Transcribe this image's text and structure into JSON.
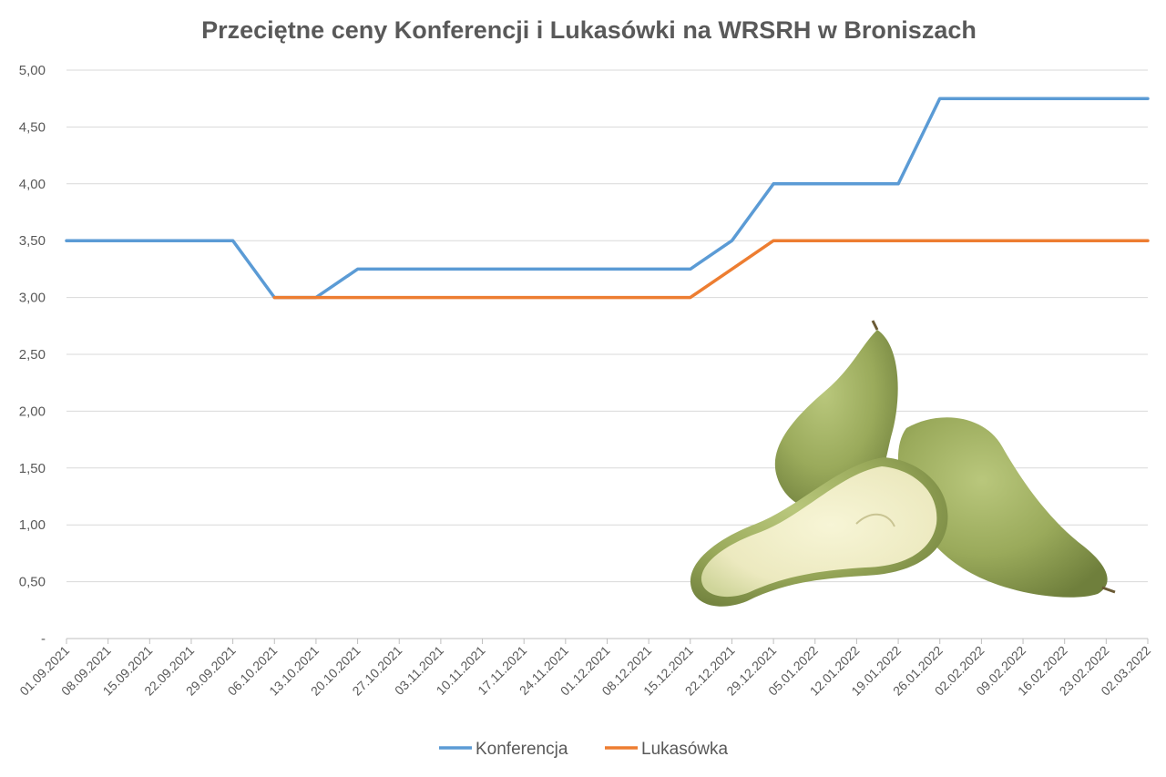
{
  "chart_data": {
    "type": "line",
    "title": "Przeciętne ceny Konferencji i Lukasówki na WRSRH w Broniszach",
    "xlabel": "",
    "ylabel": "",
    "ylim": [
      0,
      5
    ],
    "ytick_labels": [
      "-",
      "0,50",
      "1,00",
      "1,50",
      "2,00",
      "2,50",
      "3,00",
      "3,50",
      "4,00",
      "4,50",
      "5,00"
    ],
    "grid": true,
    "legend_position": "bottom",
    "categories": [
      "01.09.2021",
      "08.09.2021",
      "15.09.2021",
      "22.09.2021",
      "29.09.2021",
      "06.10.2021",
      "13.10.2021",
      "20.10.2021",
      "27.10.2021",
      "03.11.2021",
      "10.11.2021",
      "17.11.2021",
      "24.11.2021",
      "01.12.2021",
      "08.12.2021",
      "15.12.2021",
      "22.12.2021",
      "29.12.2021",
      "05.01.2022",
      "12.01.2022",
      "19.01.2022",
      "26.01.2022",
      "02.02.2022",
      "09.02.2022",
      "16.02.2022",
      "23.02.2022",
      "02.03.2022"
    ],
    "series": [
      {
        "name": "Konferencja",
        "color": "#5b9bd5",
        "values": [
          3.5,
          3.5,
          3.5,
          3.5,
          3.5,
          3.0,
          3.0,
          3.25,
          3.25,
          3.25,
          3.25,
          3.25,
          3.25,
          3.25,
          3.25,
          3.25,
          3.5,
          4.0,
          4.0,
          4.0,
          4.0,
          4.75,
          4.75,
          4.75,
          4.75,
          4.75,
          4.75
        ]
      },
      {
        "name": "Lukasówka",
        "color": "#ed7d31",
        "values": [
          null,
          null,
          null,
          null,
          null,
          3.0,
          3.0,
          3.0,
          3.0,
          3.0,
          3.0,
          3.0,
          3.0,
          3.0,
          3.0,
          3.0,
          3.25,
          3.5,
          3.5,
          3.5,
          3.5,
          3.5,
          3.5,
          3.5,
          3.5,
          3.5,
          3.5
        ]
      }
    ]
  },
  "decoration": {
    "image": "pears-illustration"
  }
}
